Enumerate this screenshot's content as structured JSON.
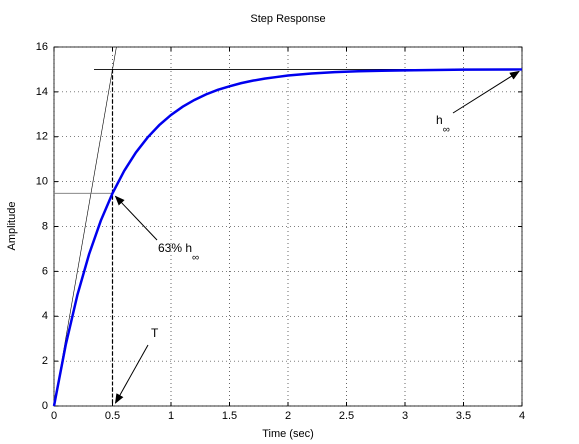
{
  "chart_data": {
    "type": "line",
    "title": "Step Response",
    "x_label": "Time (sec)",
    "y_label": "Amplitude",
    "x": [
      0,
      0.1,
      0.2,
      0.3,
      0.4,
      0.5,
      0.6,
      0.7,
      0.8,
      0.9,
      1.0,
      1.1,
      1.2,
      1.3,
      1.4,
      1.5,
      1.6,
      1.7,
      1.8,
      1.9,
      2.0,
      2.2,
      2.4,
      2.6,
      2.8,
      3.0,
      3.5,
      4.0
    ],
    "series": [
      {
        "color": "#0000ee",
        "values": [
          0,
          2.72,
          4.95,
          6.77,
          8.26,
          9.48,
          10.48,
          11.3,
          11.97,
          12.52,
          12.97,
          13.34,
          13.64,
          13.89,
          14.09,
          14.25,
          14.39,
          14.5,
          14.59,
          14.66,
          14.73,
          14.82,
          14.88,
          14.92,
          14.94,
          14.96,
          14.99,
          15.0
        ]
      }
    ],
    "xlim": [
      0,
      4
    ],
    "xticks": [
      0,
      0.5,
      1,
      1.5,
      2,
      2.5,
      3,
      3.5,
      4
    ],
    "ylim": [
      0,
      16
    ],
    "yticks": [
      0,
      2,
      4,
      6,
      8,
      10,
      12,
      14,
      16
    ],
    "grid": true,
    "reference": {
      "final_value": 15,
      "time_constant": 0.5,
      "value_at_time_constant": 9.48
    },
    "annotations": [
      {
        "text": "h",
        "subscript": "∞"
      },
      {
        "text": "63% h",
        "subscript": "∞"
      },
      {
        "text": "T"
      }
    ]
  }
}
